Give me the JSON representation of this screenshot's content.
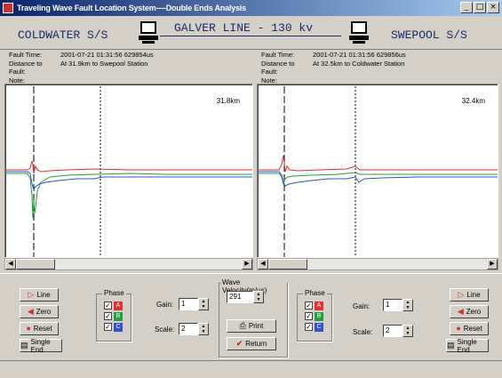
{
  "window": {
    "title": "Traveling Wave Fault Location System----Double Ends Analysis"
  },
  "header": {
    "left_station": "COLDWATER S/S",
    "line": "GALVER LINE - 130 kv",
    "right_station": "SWEPOOL S/S"
  },
  "left_panel": {
    "fault_time_label": "Fault Time:",
    "fault_time": "2001-07-21  01:31:56  629854us",
    "distance_label": "Distance to Fault:",
    "distance": "At 31.9km to  Swepool Station",
    "note_label": "Note:",
    "plot_distance": "31.8km"
  },
  "right_panel": {
    "fault_time_label": "Fault Time:",
    "fault_time": "2001-07-21  01:31:56  629856us",
    "distance_label": "Distance to Fault:",
    "distance": "At 32.5km to Coldwater Station",
    "note_label": "Note:",
    "plot_distance": "32.4km"
  },
  "controls_left": {
    "line_btn": "Line",
    "zero_btn": "Zero",
    "reset_btn": "Reset",
    "single_end_btn": "Single End",
    "phase_label": "Phase",
    "phases": [
      "A",
      "B",
      "C"
    ],
    "gain_label": "Gain:",
    "gain_value": "1",
    "scale_label": "Scale:",
    "scale_value": "2"
  },
  "controls_center": {
    "velocity_label": "Wave Velocity(m/us)",
    "velocity_value": "291",
    "print_btn": "Print",
    "return_btn": "Return"
  },
  "controls_right": {
    "line_btn": "Line",
    "zero_btn": "Zero",
    "reset_btn": "Reset",
    "single_end_btn": "Single End",
    "phase_label": "Phase",
    "phases": [
      "A",
      "B",
      "C"
    ],
    "gain_label": "Gain:",
    "gain_value": "1",
    "scale_label": "Scale:",
    "scale_value": "2"
  },
  "colors": {
    "phase_a": "#e03030",
    "phase_b": "#20a040",
    "phase_c": "#3050d0",
    "title_dark": "#0a246a"
  }
}
